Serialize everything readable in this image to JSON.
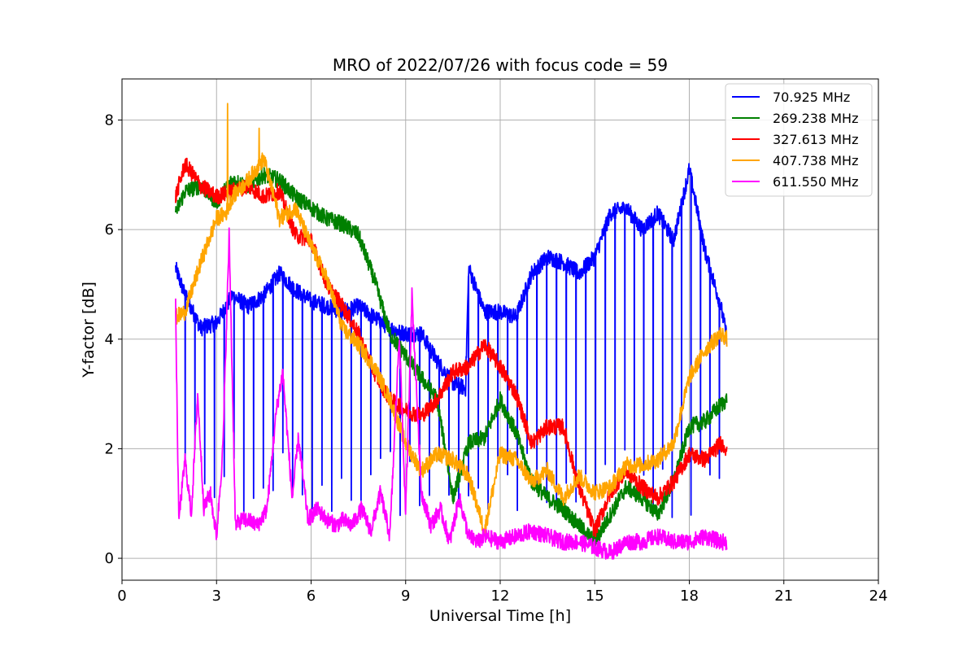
{
  "chart_data": {
    "type": "line",
    "title": "MRO of 2022/07/26 with focus code = 59",
    "xlabel": "Universal Time [h]",
    "ylabel": "Y-factor [dB]",
    "xlim": [
      0,
      24
    ],
    "ylim": [
      -0.4,
      8.75
    ],
    "xticks": [
      0,
      3,
      6,
      9,
      12,
      15,
      18,
      21,
      24
    ],
    "yticks": [
      0,
      2,
      4,
      6,
      8
    ],
    "grid": true,
    "legend_position": "top-right",
    "series": [
      {
        "name": "  70.925 MHz",
        "color": "#0000ff",
        "x": [
          1.7,
          2.0,
          2.5,
          3.0,
          3.5,
          4.0,
          4.5,
          5.0,
          5.5,
          6.0,
          6.5,
          7.0,
          7.5,
          8.0,
          8.5,
          9.0,
          9.5,
          10.0,
          10.5,
          10.9,
          11.0,
          11.5,
          12.0,
          12.5,
          13.0,
          13.5,
          14.0,
          14.5,
          15.0,
          15.5,
          16.0,
          16.5,
          17.0,
          17.5,
          18.0,
          18.5,
          19.0,
          19.2
        ],
        "y": [
          5.3,
          4.8,
          4.2,
          4.3,
          4.8,
          4.6,
          4.8,
          5.2,
          4.9,
          4.7,
          4.6,
          4.5,
          4.6,
          4.4,
          4.2,
          4.1,
          4.1,
          3.6,
          3.2,
          3.1,
          5.3,
          4.5,
          4.5,
          4.4,
          5.2,
          5.5,
          5.4,
          5.2,
          5.5,
          6.3,
          6.4,
          6.0,
          6.3,
          5.8,
          7.1,
          5.6,
          4.6,
          4.0
        ],
        "dip_bottom": 2.0,
        "dip_interval": 0.3
      },
      {
        "name": "269.238 MHz",
        "color": "#008000",
        "x": [
          1.7,
          2.0,
          2.5,
          3.0,
          3.5,
          4.0,
          4.5,
          5.0,
          5.5,
          6.0,
          6.5,
          7.0,
          7.5,
          8.0,
          8.5,
          9.0,
          9.5,
          10.0,
          10.5,
          11.0,
          11.5,
          12.0,
          12.5,
          13.0,
          13.5,
          14.0,
          14.5,
          15.0,
          15.5,
          16.0,
          16.5,
          17.0,
          17.5,
          18.0,
          18.5,
          19.0,
          19.2
        ],
        "y": [
          6.3,
          6.7,
          6.8,
          6.5,
          6.9,
          6.8,
          7.0,
          6.9,
          6.6,
          6.4,
          6.2,
          6.1,
          5.9,
          5.1,
          4.1,
          3.7,
          3.3,
          2.9,
          1.1,
          2.1,
          2.2,
          2.9,
          2.3,
          1.4,
          1.1,
          0.9,
          0.6,
          0.3,
          0.8,
          1.3,
          1.1,
          0.8,
          1.4,
          2.4,
          2.5,
          2.8,
          2.9
        ]
      },
      {
        "name": "327.613 MHz",
        "color": "#ff0000",
        "x": [
          1.7,
          2.0,
          2.5,
          3.0,
          3.5,
          4.0,
          4.5,
          5.0,
          5.5,
          6.0,
          6.5,
          7.0,
          7.5,
          8.0,
          8.5,
          9.0,
          9.5,
          10.0,
          10.5,
          11.0,
          11.5,
          12.0,
          12.5,
          13.0,
          13.5,
          14.0,
          14.5,
          15.0,
          15.5,
          16.0,
          16.5,
          17.0,
          17.5,
          18.0,
          18.5,
          19.0,
          19.2
        ],
        "y": [
          6.6,
          7.2,
          6.8,
          6.6,
          6.7,
          6.8,
          6.6,
          6.7,
          5.9,
          5.8,
          5.0,
          4.6,
          4.1,
          3.4,
          2.9,
          2.7,
          2.6,
          2.9,
          3.4,
          3.5,
          3.9,
          3.5,
          3.0,
          2.1,
          2.4,
          2.4,
          1.3,
          0.5,
          1.2,
          1.6,
          1.3,
          1.1,
          1.4,
          1.9,
          1.8,
          2.1,
          2.0
        ]
      },
      {
        "name": "407.738 MHz",
        "color": "#ffa500",
        "x": [
          1.7,
          2.0,
          2.5,
          3.0,
          3.3,
          3.5,
          4.0,
          4.5,
          5.0,
          5.5,
          6.0,
          6.5,
          7.0,
          7.5,
          8.0,
          8.5,
          9.0,
          9.5,
          10.0,
          10.5,
          11.0,
          11.5,
          12.0,
          12.5,
          13.0,
          13.5,
          14.0,
          14.5,
          15.0,
          15.5,
          16.0,
          16.5,
          17.0,
          17.5,
          18.0,
          18.5,
          19.0,
          19.2
        ],
        "y": [
          4.4,
          4.5,
          5.4,
          6.2,
          6.3,
          6.6,
          6.9,
          7.3,
          6.2,
          6.4,
          5.7,
          5.1,
          4.2,
          3.9,
          3.5,
          2.9,
          2.1,
          1.6,
          1.9,
          1.8,
          1.5,
          0.5,
          1.9,
          1.8,
          1.4,
          1.6,
          1.1,
          1.5,
          1.2,
          1.3,
          1.7,
          1.7,
          1.8,
          2.1,
          3.3,
          3.8,
          4.1,
          4.0
        ],
        "spikes": [
          [
            3.35,
            8.3
          ],
          [
            4.35,
            7.85
          ]
        ]
      },
      {
        "name": "611.550 MHz",
        "color": "#ff00ff",
        "x": [
          1.7,
          1.8,
          2.0,
          2.2,
          2.4,
          2.6,
          2.8,
          3.0,
          3.2,
          3.4,
          3.6,
          3.8,
          4.0,
          4.3,
          4.6,
          4.9,
          5.1,
          5.4,
          5.6,
          5.9,
          6.2,
          6.5,
          6.8,
          7.0,
          7.3,
          7.6,
          7.9,
          8.2,
          8.5,
          8.8,
          9.0,
          9.2,
          9.5,
          9.8,
          10.1,
          10.4,
          10.7,
          11.0,
          11.3,
          11.5,
          12.0,
          12.5,
          13.0,
          13.5,
          14.0,
          14.5,
          15.0,
          15.5,
          16.0,
          16.5,
          17.0,
          17.5,
          18.0,
          18.5,
          19.0,
          19.2
        ],
        "y": [
          4.6,
          0.7,
          1.8,
          0.8,
          3.0,
          0.9,
          1.2,
          0.4,
          2.0,
          5.9,
          0.6,
          0.7,
          0.7,
          0.6,
          0.9,
          2.7,
          3.4,
          1.1,
          2.2,
          0.7,
          0.9,
          0.7,
          0.6,
          0.7,
          0.6,
          0.9,
          0.5,
          1.2,
          0.4,
          4.1,
          0.8,
          4.8,
          1.2,
          0.6,
          0.9,
          0.3,
          1.1,
          0.4,
          0.3,
          0.4,
          0.3,
          0.4,
          0.5,
          0.4,
          0.3,
          0.3,
          0.2,
          0.1,
          0.3,
          0.3,
          0.4,
          0.3,
          0.3,
          0.4,
          0.3,
          0.3
        ]
      }
    ]
  }
}
